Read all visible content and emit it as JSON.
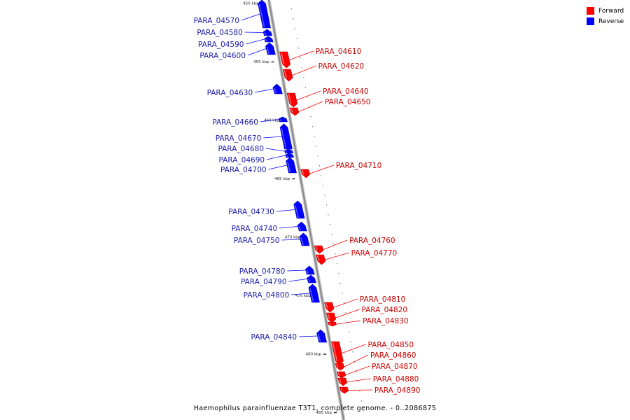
{
  "colors": {
    "forward": "#ff0000",
    "reverse": "#0000ff",
    "axis": "#999999"
  },
  "legend": [
    {
      "label": "Forward",
      "color": "#ff0000"
    },
    {
      "label": "Reverse",
      "color": "#0000ff"
    }
  ],
  "caption": "Haemophilus parainfluenzae T3T1, complete genome. - 0..2086875",
  "ticks": [
    {
      "label": "450 kbp",
      "kb": 450
    },
    {
      "label": "455 kbp",
      "kb": 455
    },
    {
      "label": "460 kbp",
      "kb": 460
    },
    {
      "label": "465 kbp",
      "kb": 465
    },
    {
      "label": "470 kbp",
      "kb": 470
    },
    {
      "label": "475 kbp",
      "kb": 475
    },
    {
      "label": "480 kbp",
      "kb": 480
    },
    {
      "label": "485 kbp",
      "kb": 485
    }
  ],
  "genes": [
    {
      "name": "PARA_04570",
      "strand": "reverse"
    },
    {
      "name": "PARA_04580",
      "strand": "reverse"
    },
    {
      "name": "PARA_04590",
      "strand": "reverse"
    },
    {
      "name": "PARA_04600",
      "strand": "reverse"
    },
    {
      "name": "PARA_04610",
      "strand": "forward"
    },
    {
      "name": "PARA_04620",
      "strand": "forward"
    },
    {
      "name": "PARA_04630",
      "strand": "reverse"
    },
    {
      "name": "PARA_04640",
      "strand": "forward"
    },
    {
      "name": "PARA_04650",
      "strand": "forward"
    },
    {
      "name": "PARA_04660",
      "strand": "reverse"
    },
    {
      "name": "PARA_04670",
      "strand": "reverse"
    },
    {
      "name": "PARA_04680",
      "strand": "reverse"
    },
    {
      "name": "PARA_04690",
      "strand": "reverse"
    },
    {
      "name": "PARA_04700",
      "strand": "reverse"
    },
    {
      "name": "PARA_04710",
      "strand": "forward"
    },
    {
      "name": "PARA_04730",
      "strand": "reverse"
    },
    {
      "name": "PARA_04740",
      "strand": "reverse"
    },
    {
      "name": "PARA_04750",
      "strand": "reverse"
    },
    {
      "name": "PARA_04760",
      "strand": "forward"
    },
    {
      "name": "PARA_04770",
      "strand": "forward"
    },
    {
      "name": "PARA_04780",
      "strand": "reverse"
    },
    {
      "name": "PARA_04790",
      "strand": "reverse"
    },
    {
      "name": "PARA_04800",
      "strand": "reverse"
    },
    {
      "name": "PARA_04810",
      "strand": "forward"
    },
    {
      "name": "PARA_04820",
      "strand": "forward"
    },
    {
      "name": "PARA_04830",
      "strand": "forward"
    },
    {
      "name": "PARA_04840",
      "strand": "reverse"
    },
    {
      "name": "PARA_04850",
      "strand": "forward"
    },
    {
      "name": "PARA_04860",
      "strand": "forward"
    },
    {
      "name": "PARA_04870",
      "strand": "forward"
    },
    {
      "name": "PARA_04880",
      "strand": "forward"
    },
    {
      "name": "PARA_04890",
      "strand": "forward"
    }
  ]
}
